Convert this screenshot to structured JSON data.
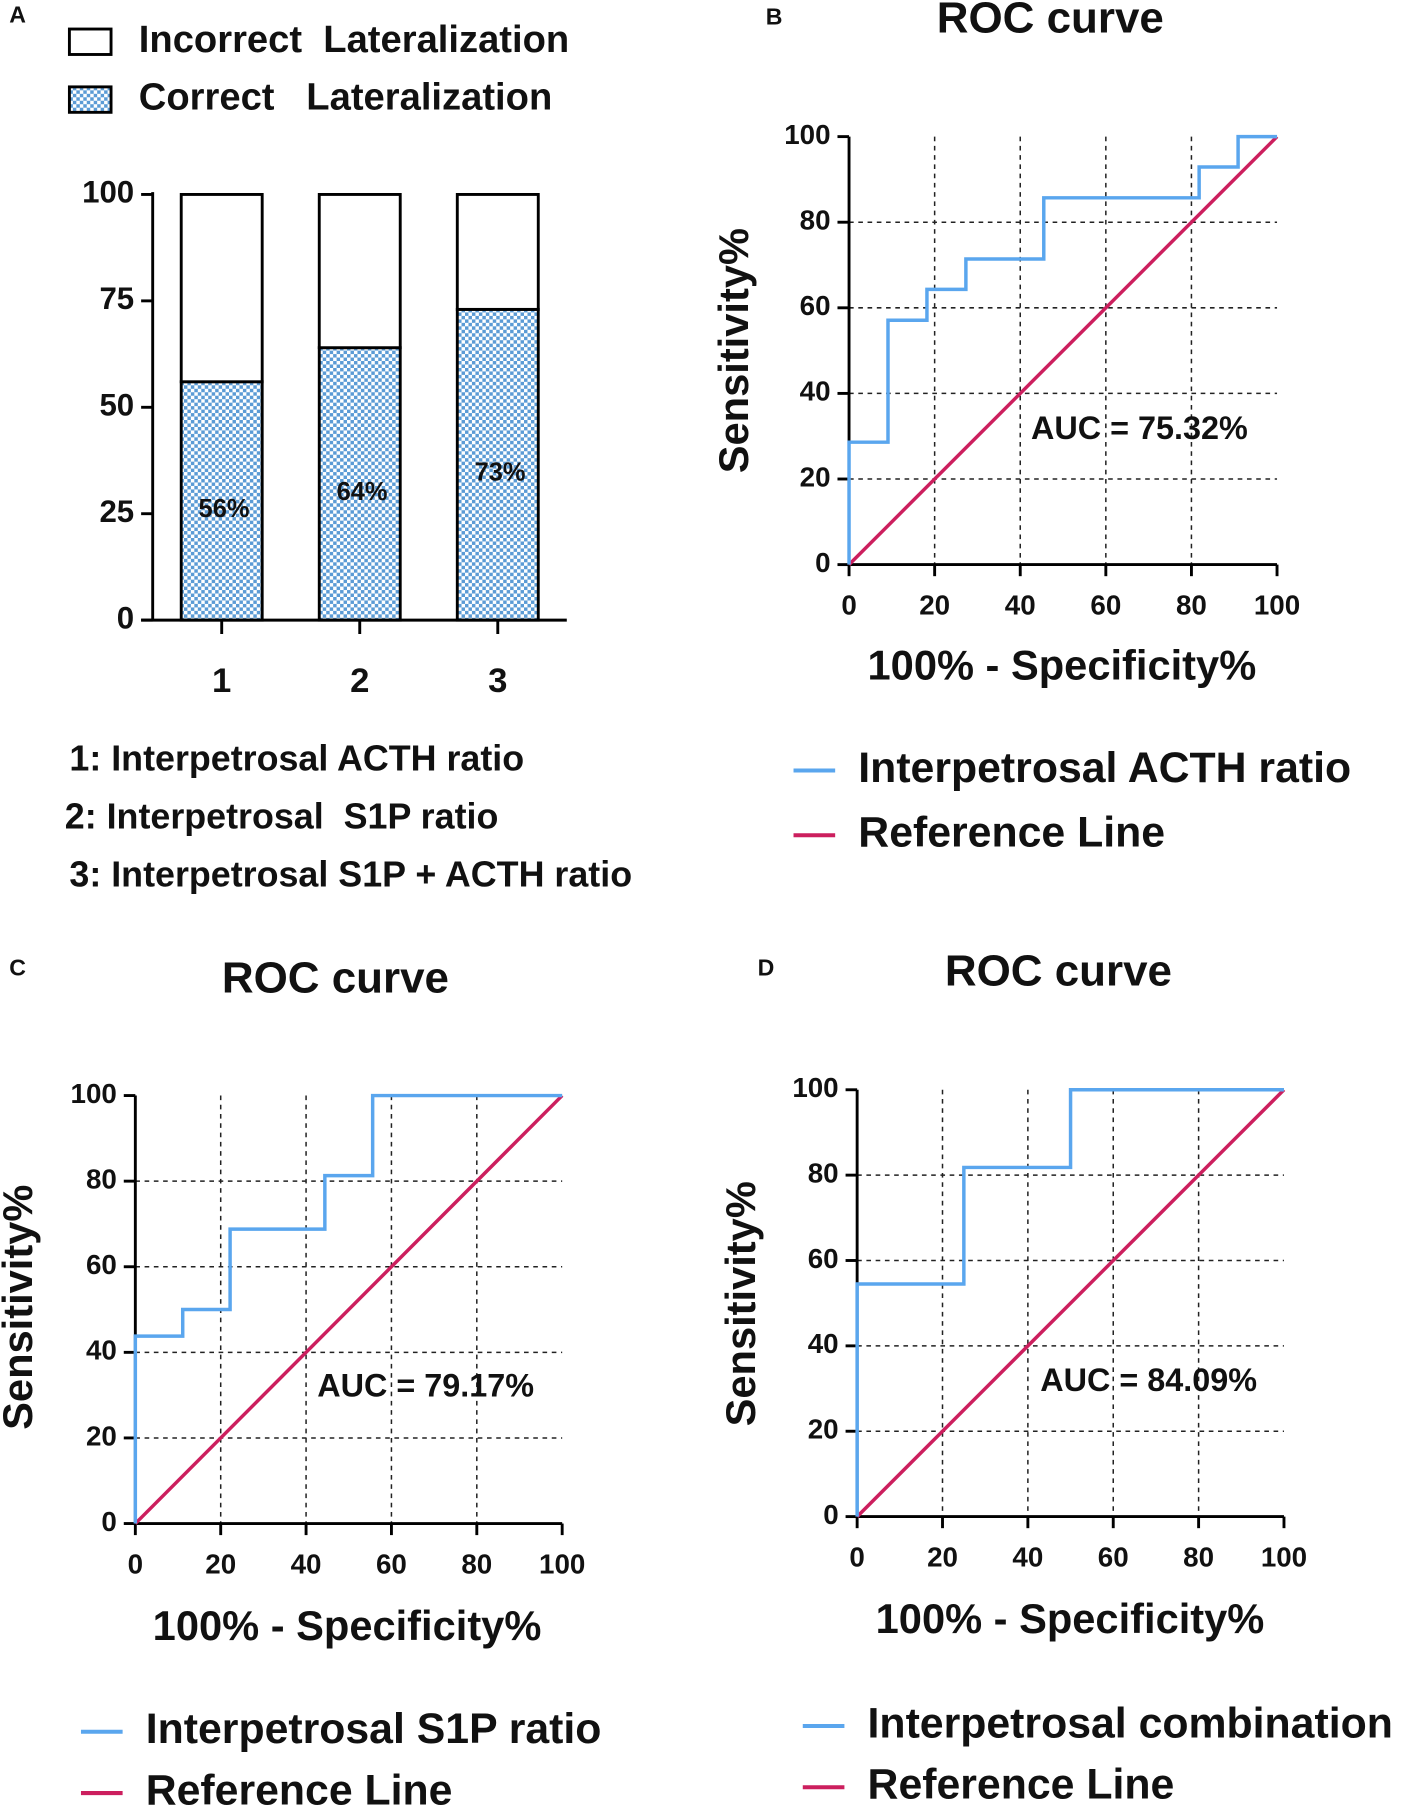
{
  "chart_data": [
    {
      "type": "bar",
      "panel": "A",
      "categories": [
        "1",
        "2",
        "3"
      ],
      "series": [
        {
          "name": "Correct   Lateralization",
          "color": "#5b9bd5",
          "values": [
            56,
            64,
            73
          ],
          "value_labels": [
            "56%",
            "64%",
            "73%"
          ]
        },
        {
          "name": "Incorrect  Lateralization",
          "color": "#ffffff",
          "values": [
            44,
            36,
            27
          ]
        }
      ],
      "ylim": [
        0,
        100
      ],
      "yticks": [
        0,
        25,
        50,
        75,
        100
      ],
      "category_notes": [
        "1: Interpetrosal ACTH ratio",
        "2: Interpetrosal  S1P ratio",
        "3: Interpetrosal S1P + ACTH ratio"
      ]
    },
    {
      "type": "line",
      "panel": "B",
      "title": "ROC curve",
      "x_label": "100% - Specificity%",
      "y_label": "Sensitivity%",
      "annotation": "AUC = 75.32%",
      "series": [
        {
          "name": "Interpetrosal ACTH ratio",
          "color": "#5aa6ee",
          "x": [
            0,
            0,
            9.1,
            9.1,
            18.2,
            18.2,
            27.3,
            27.3,
            45.5,
            45.5,
            81.8,
            81.8,
            90.9,
            90.9,
            100
          ],
          "values": [
            0,
            28.6,
            28.6,
            57.1,
            57.1,
            64.3,
            64.3,
            71.4,
            71.4,
            85.7,
            85.7,
            92.9,
            92.9,
            100,
            100
          ]
        },
        {
          "name": "Reference Line",
          "color": "#cc1f5e",
          "x": [
            0,
            100
          ],
          "values": [
            0,
            100
          ]
        }
      ],
      "xlim": [
        0,
        100
      ],
      "ylim": [
        0,
        100
      ],
      "xticks": [
        0,
        20,
        40,
        60,
        80,
        100
      ],
      "yticks": [
        0,
        20,
        40,
        60,
        80,
        100
      ],
      "grid": true
    },
    {
      "type": "line",
      "panel": "C",
      "title": "ROC curve",
      "x_label": "100% - Specificity%",
      "y_label": "Sensitivity%",
      "annotation": "AUC = 79.17%",
      "series": [
        {
          "name": "Interpetrosal S1P ratio",
          "color": "#5aa6ee",
          "x": [
            0,
            0,
            11.1,
            11.1,
            22.2,
            22.2,
            44.4,
            44.4,
            55.6,
            55.6,
            100
          ],
          "values": [
            0,
            43.8,
            43.8,
            50,
            50,
            68.8,
            68.8,
            81.3,
            81.3,
            100,
            100
          ]
        },
        {
          "name": "Reference Line",
          "color": "#cc1f5e",
          "x": [
            0,
            100
          ],
          "values": [
            0,
            100
          ]
        }
      ],
      "xlim": [
        0,
        100
      ],
      "ylim": [
        0,
        100
      ],
      "xticks": [
        0,
        20,
        40,
        60,
        80,
        100
      ],
      "yticks": [
        0,
        20,
        40,
        60,
        80,
        100
      ],
      "grid": true
    },
    {
      "type": "line",
      "panel": "D",
      "title": "ROC curve",
      "x_label": "100% - Specificity%",
      "y_label": "Sensitivity%",
      "annotation": "AUC = 84.09%",
      "series": [
        {
          "name": "Interpetrosal combination",
          "color": "#5aa6ee",
          "x": [
            0,
            0,
            25,
            25,
            50,
            50,
            100
          ],
          "values": [
            0,
            54.5,
            54.5,
            81.8,
            81.8,
            100,
            100
          ]
        },
        {
          "name": "Reference Line",
          "color": "#cc1f5e",
          "x": [
            0,
            100
          ],
          "values": [
            0,
            100
          ]
        }
      ],
      "xlim": [
        0,
        100
      ],
      "ylim": [
        0,
        100
      ],
      "xticks": [
        0,
        20,
        40,
        60,
        80,
        100
      ],
      "yticks": [
        0,
        20,
        40,
        60,
        80,
        100
      ],
      "grid": true
    }
  ]
}
